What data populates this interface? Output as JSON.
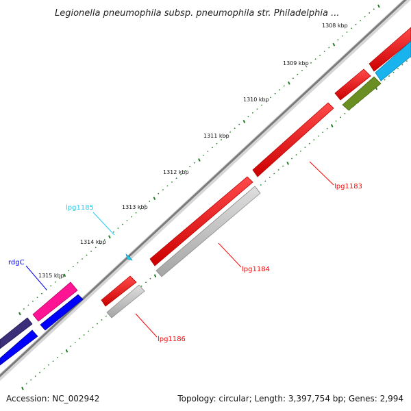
{
  "title": "Legionella pneumophila subsp. pneumophila str. Philadelphia ...",
  "ticks": [
    "1308 kbp",
    "1309 kbp",
    "1310 kbp",
    "1311 kbp",
    "1312 kbp",
    "1313 kbp",
    "1314 kbp",
    "1315 kbp"
  ],
  "genes": {
    "lpg1183": "lpg1183",
    "lpg1184": "lpg1184",
    "lpg1185": "lpg1185",
    "lpg1186": "lpg1186",
    "rdgC": "rdgC"
  },
  "footer": {
    "accession": "Accession: NC_002942",
    "summary": "Topology: circular; Length: 3,397,754 bp; Genes: 2,994"
  },
  "colors": {
    "cds": "#ff0000",
    "cds_dark": "#b30000",
    "rna": "#22ccee",
    "other_gray": "#bbbbbb",
    "pink": "#ff1493",
    "blue": "#0000ff",
    "navy": "#3b2f7a",
    "olive": "#6b8e23",
    "sky": "#00aaee",
    "backbone": "#777777",
    "tick_green": "#1f7a1f"
  }
}
